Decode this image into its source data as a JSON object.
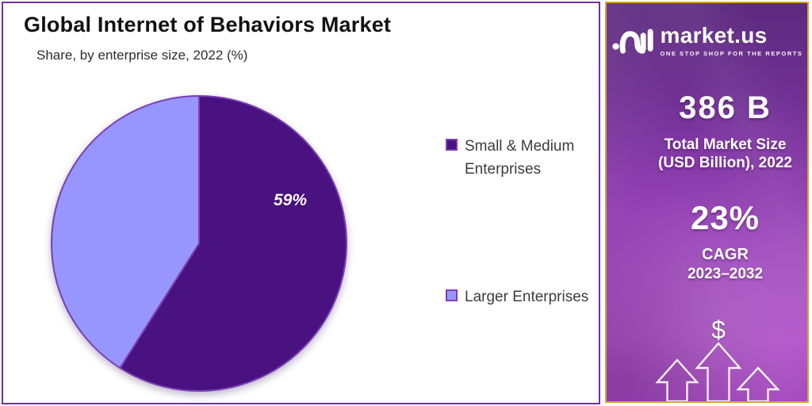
{
  "chart_data": {
    "type": "pie",
    "title": "Global Internet of Behaviors Market",
    "subtitle": "Share, by enterprise size, 2022 (%)",
    "categories": [
      "Small & Medium Enterprises",
      "Larger Enterprises"
    ],
    "values": [
      59,
      41
    ],
    "unit": "%",
    "data_labels": [
      "59%",
      ""
    ],
    "colors": [
      "#4A1180",
      "#9796FE"
    ],
    "border_color": "#7B3FB5",
    "start_angle_deg": 0,
    "direction": "clockwise",
    "legend_position": "right"
  },
  "sidebar": {
    "brand": "market.us",
    "tagline": "ONE STOP SHOP FOR THE REPORTS",
    "stats": [
      {
        "value": "386 B",
        "caption": "Total Market Size",
        "caption2": "(USD Billion), 2022"
      },
      {
        "value": "23%",
        "caption": "CAGR",
        "caption2": "2023–2032"
      }
    ],
    "dollar_symbol": "$",
    "colors": {
      "panel_border": "#D9A12E",
      "chart_border": "#7030A0",
      "bg_top": "#5C2A7E",
      "bg_bottom": "#AF52C8"
    }
  }
}
